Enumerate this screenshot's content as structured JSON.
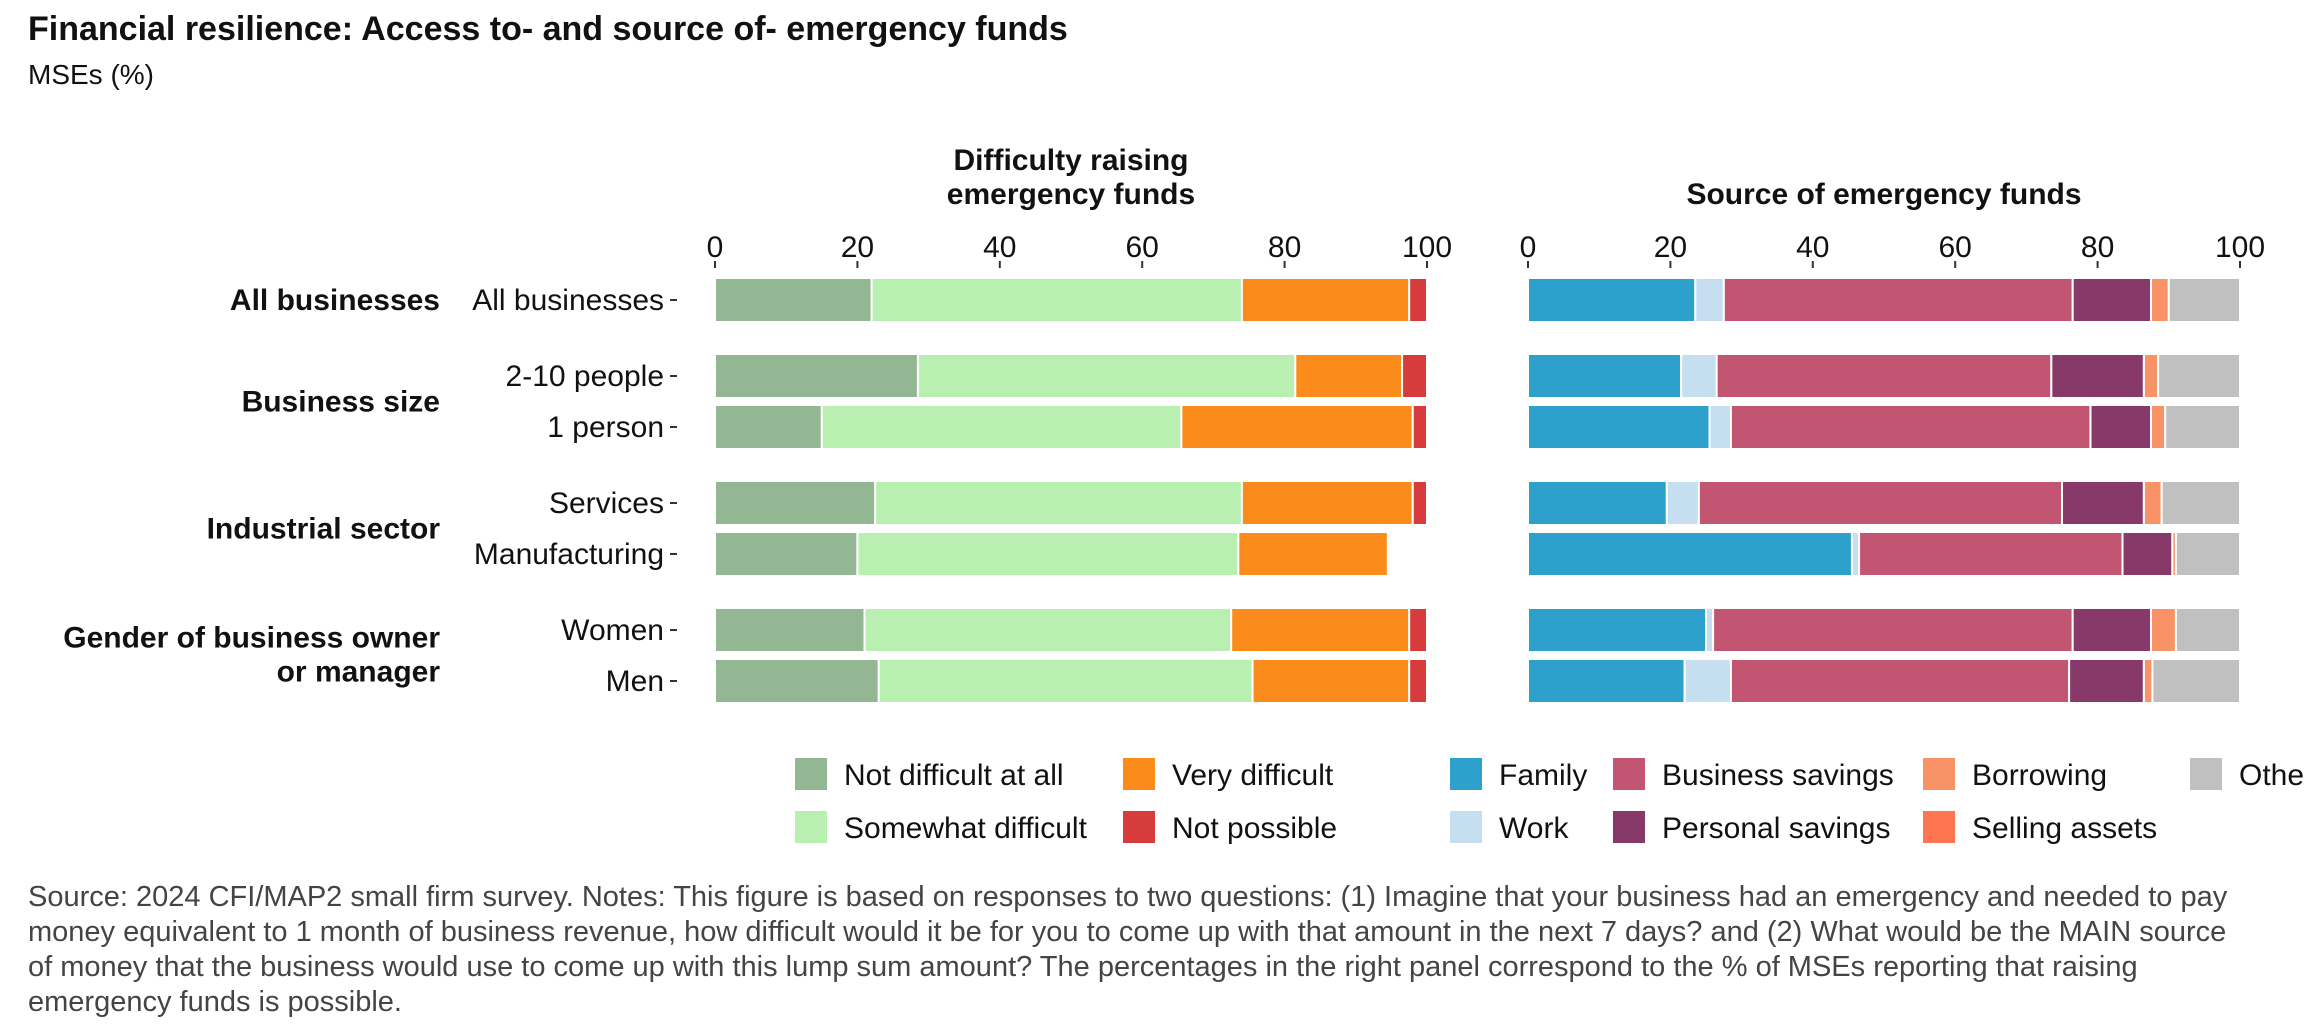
{
  "title": "Financial resilience: Access to- and source of- emergency funds",
  "subtitle": "MSEs (%)",
  "source_note": "Source: 2024 CFI/MAP2 small firm survey. Notes: This figure is based on responses to two questions: (1) Imagine that your business had an emergency and needed to pay money equivalent to 1 month of business revenue, how difficult would it be for you to come up with that amount in the next 7 days? and (2) What would be the MAIN source of money that the business would use to come up with this lump sum amount? The percentages in the right panel correspond to the % of MSEs reporting that raising emergency funds is possible.",
  "chart_data": [
    {
      "type": "bar",
      "orientation": "horizontal",
      "stacked": true,
      "title": "Difficulty raising emergency funds",
      "xlim": [
        0,
        100
      ],
      "x_ticks": [
        0,
        20,
        40,
        60,
        80,
        100
      ],
      "groups": [
        {
          "label": "All businesses",
          "rows": [
            "All businesses"
          ]
        },
        {
          "label": "Business size",
          "rows": [
            "2-10 people",
            "1 person"
          ]
        },
        {
          "label": "Industrial sector",
          "rows": [
            "Services",
            "Manufacturing"
          ]
        },
        {
          "label": "Gender of business owner or manager",
          "rows": [
            "Women",
            "Men"
          ]
        }
      ],
      "categories": [
        "All businesses",
        "2-10 people",
        "1 person",
        "Services",
        "Manufacturing",
        "Women",
        "Men"
      ],
      "series": [
        {
          "name": "Not difficult at all",
          "color": "#93b793",
          "values": [
            22,
            28.5,
            15,
            22.5,
            20,
            21,
            23
          ]
        },
        {
          "name": "Somewhat difficult",
          "color": "#b9efb1",
          "values": [
            52,
            53,
            50.5,
            51.5,
            53.5,
            51.5,
            52.5
          ]
        },
        {
          "name": "Very difficult",
          "color": "#fb8b1b",
          "values": [
            23.5,
            15,
            32.5,
            24,
            21,
            25,
            22
          ]
        },
        {
          "name": "Not possible",
          "color": "#d73c3c",
          "values": [
            2.5,
            3.5,
            2,
            2,
            0,
            2.5,
            2.5
          ]
        }
      ],
      "legend_position": "bottom"
    },
    {
      "type": "bar",
      "orientation": "horizontal",
      "stacked": true,
      "title": "Source of emergency funds",
      "xlim": [
        0,
        100
      ],
      "x_ticks": [
        0,
        20,
        40,
        60,
        80,
        100
      ],
      "categories": [
        "All businesses",
        "2-10 people",
        "1 person",
        "Services",
        "Manufacturing",
        "Women",
        "Men"
      ],
      "series": [
        {
          "name": "Family",
          "color": "#2ea0cc",
          "values": [
            23.5,
            21.5,
            25.5,
            19.5,
            45.5,
            25,
            22
          ]
        },
        {
          "name": "Work",
          "color": "#c5dff0",
          "values": [
            4,
            5,
            3,
            4.5,
            1,
            1,
            6.5
          ]
        },
        {
          "name": "Business savings",
          "color": "#c25572",
          "values": [
            49,
            47,
            50.5,
            51,
            37,
            50.5,
            47.5
          ]
        },
        {
          "name": "Personal savings",
          "color": "#873a69",
          "values": [
            11,
            13,
            8.5,
            11.5,
            7,
            11,
            10.5
          ]
        },
        {
          "name": "Borrowing",
          "color": "#f79366",
          "values": [
            2.5,
            2,
            2,
            2.5,
            0.5,
            3.5,
            1.2
          ]
        },
        {
          "name": "Selling assets",
          "color": "#ff7552",
          "values": [
            0,
            0,
            0,
            0,
            0,
            0,
            0
          ]
        },
        {
          "name": "Other",
          "color": "#c0c0c0",
          "values": [
            10,
            11.5,
            10.5,
            11,
            9,
            9,
            12.3
          ]
        }
      ],
      "legend_position": "bottom"
    }
  ]
}
